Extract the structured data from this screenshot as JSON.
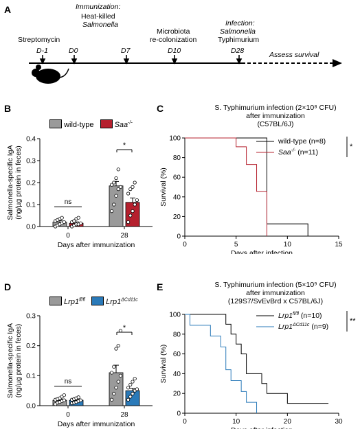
{
  "panel_labels": {
    "a": "A",
    "b": "B",
    "c": "C",
    "d": "D",
    "e": "E"
  },
  "timeline": {
    "events": [
      {
        "label_1": "Streptomycin",
        "label_2": "",
        "day": "D-1"
      },
      {
        "label_1": "Immunization:",
        "label_2": "Heat-killed",
        "label_3": "Salmonella",
        "day": "D0"
      },
      {
        "label_1": "",
        "day": "D7"
      },
      {
        "label_1": "Microbiota",
        "label_2": "re-colonization",
        "day": "D10"
      },
      {
        "label_1": "Infection:",
        "label_2": "Salmonella",
        "label_3": "Typhimurium",
        "day": "D28"
      }
    ],
    "assess_label": "Assess survival",
    "colors": {
      "line": "#000000",
      "mouse": "#000000"
    }
  },
  "chart_data": [
    {
      "id": "B",
      "type": "bar",
      "ylabel_1": "Salmonella-specific IgA",
      "ylabel_2": "(ng/µg protein in feces)",
      "xlabel": "Days after immunization",
      "categories": [
        "0",
        "28"
      ],
      "ylim": [
        0,
        0.4
      ],
      "yticks": [
        "0.0",
        "0.1",
        "0.2",
        "0.3",
        "0.4"
      ],
      "series": [
        {
          "name": "wild-type",
          "color": "#9a9a9a",
          "values": [
            0.02,
            0.185
          ],
          "err": [
            0.007,
            0.02
          ],
          "points": [
            [
              0.0,
              0.005,
              0.01,
              0.015,
              0.02,
              0.025,
              0.03,
              0.035,
              0.04
            ],
            [
              0.07,
              0.1,
              0.14,
              0.17,
              0.18,
              0.19,
              0.2,
              0.22,
              0.26
            ]
          ]
        },
        {
          "name": "Saa-/-",
          "color": "#b5202e",
          "values": [
            0.015,
            0.11
          ],
          "err": [
            0.006,
            0.02
          ],
          "points": [
            [
              0.0,
              0.005,
              0.01,
              0.01,
              0.015,
              0.02,
              0.025,
              0.035,
              0.04
            ],
            [
              0.02,
              0.05,
              0.07,
              0.1,
              0.12,
              0.15,
              0.17,
              0.18,
              0.2
            ]
          ]
        }
      ],
      "sig": [
        "ns",
        "*"
      ]
    },
    {
      "id": "C",
      "type": "line",
      "title_1": "S. Typhimurium infection (2×10⁸ CFU)",
      "title_2": "after immunization",
      "title_3": "(C57BL/6J)",
      "xlabel": "Days after infection",
      "ylabel": "Survival (%)",
      "xlim": [
        0,
        15
      ],
      "ylim": [
        0,
        100
      ],
      "xticks": [
        "0",
        "5",
        "10",
        "15"
      ],
      "yticks": [
        "0",
        "20",
        "40",
        "60",
        "80",
        "100"
      ],
      "series": [
        {
          "name": "wild-type",
          "n_label": "(n=8)",
          "color": "#000000",
          "steps": [
            [
              0,
              100
            ],
            [
              8,
              100
            ],
            [
              8,
              12.5
            ],
            [
              12,
              12.5
            ],
            [
              12,
              0
            ]
          ]
        },
        {
          "name": "Saa-/-",
          "n_label": "(n=11)",
          "color": "#b5202e",
          "steps": [
            [
              0,
              100
            ],
            [
              5,
              100
            ],
            [
              5,
              91
            ],
            [
              6,
              91
            ],
            [
              6,
              73
            ],
            [
              7,
              73
            ],
            [
              7,
              45.5
            ],
            [
              8,
              45.5
            ],
            [
              8,
              0
            ]
          ]
        }
      ],
      "sig": "*"
    },
    {
      "id": "D",
      "type": "bar",
      "ylabel_1": "Salmonella-specific IgA",
      "ylabel_2": "(ng/µg protein in feces)",
      "xlabel": "Days after immunization",
      "categories": [
        "0",
        "28"
      ],
      "ylim": [
        0,
        0.3
      ],
      "yticks": [
        "0.0",
        "0.1",
        "0.2",
        "0.3"
      ],
      "series": [
        {
          "name": "Lrp1fl/fl",
          "color": "#9a9a9a",
          "values": [
            0.018,
            0.11
          ],
          "err": [
            0.004,
            0.025
          ],
          "points": [
            [
              0.005,
              0.01,
              0.012,
              0.015,
              0.018,
              0.02,
              0.022,
              0.025,
              0.03,
              0.035
            ],
            [
              0.02,
              0.04,
              0.06,
              0.08,
              0.1,
              0.11,
              0.13,
              0.19,
              0.2,
              0.25
            ]
          ]
        },
        {
          "name": "Lrp1ΔCd11c",
          "color": "#2a7ab9",
          "values": [
            0.018,
            0.05
          ],
          "err": [
            0.003,
            0.008
          ],
          "points": [
            [
              0.008,
              0.01,
              0.012,
              0.015,
              0.018,
              0.02,
              0.022,
              0.025,
              0.028
            ],
            [
              0.02,
              0.03,
              0.04,
              0.05,
              0.055,
              0.06,
              0.07,
              0.08,
              0.09
            ]
          ]
        }
      ],
      "sig": [
        "ns",
        "*"
      ]
    },
    {
      "id": "E",
      "type": "line",
      "title_1": "S. Typhimurium infection (5×10⁹ CFU)",
      "title_2": "after immunization",
      "title_3": "(129S7/SvEvBrd x C57BL/6J)",
      "xlabel": "Days after infection",
      "ylabel": "Survival (%)",
      "xlim": [
        0,
        30
      ],
      "ylim": [
        0,
        100
      ],
      "xticks": [
        "0",
        "10",
        "20",
        "30"
      ],
      "yticks": [
        "0",
        "20",
        "40",
        "60",
        "80",
        "100"
      ],
      "series": [
        {
          "name": "Lrp1fl/fl",
          "n_label": "(n=10)",
          "color": "#000000",
          "steps": [
            [
              0,
              100
            ],
            [
              8,
              100
            ],
            [
              8,
              90
            ],
            [
              9,
              90
            ],
            [
              9,
              80
            ],
            [
              10,
              80
            ],
            [
              10,
              70
            ],
            [
              11,
              70
            ],
            [
              11,
              60
            ],
            [
              12,
              60
            ],
            [
              12,
              40
            ],
            [
              15,
              40
            ],
            [
              15,
              30
            ],
            [
              16,
              30
            ],
            [
              16,
              20
            ],
            [
              18,
              20
            ],
            [
              18,
              20
            ],
            [
              20,
              20
            ],
            [
              20,
              10
            ],
            [
              28,
              10
            ]
          ]
        },
        {
          "name": "Lrp1ΔCd11c",
          "n_label": "(n=9)",
          "color": "#2a7ab9",
          "steps": [
            [
              0,
              100
            ],
            [
              1,
              100
            ],
            [
              1,
              89
            ],
            [
              5,
              89
            ],
            [
              5,
              78
            ],
            [
              7,
              78
            ],
            [
              7,
              67
            ],
            [
              8,
              67
            ],
            [
              8,
              44
            ],
            [
              9,
              44
            ],
            [
              9,
              33
            ],
            [
              11,
              33
            ],
            [
              11,
              22
            ],
            [
              12,
              22
            ],
            [
              12,
              11
            ],
            [
              14,
              11
            ],
            [
              14,
              0
            ]
          ]
        }
      ],
      "sig": "**"
    }
  ],
  "legend_b": {
    "wt": "wild-type",
    "ko": "Saa",
    "ko_sup": "-/-"
  },
  "legend_c": {
    "wt": "wild-type",
    "wt_n": "(n=8)",
    "ko": "Saa",
    "ko_sup": "-/-",
    "ko_n": "(n=11)"
  },
  "legend_d": {
    "wt": "Lrp1",
    "wt_sup": "fl/fl",
    "ko": "Lrp1",
    "ko_sup": "ΔCd11c"
  },
  "legend_e": {
    "wt": "Lrp1",
    "wt_sup": "fl/fl",
    "wt_n": "(n=10)",
    "ko": "Lrp1",
    "ko_sup": "ΔCd11c",
    "ko_n": "(n=9)"
  }
}
